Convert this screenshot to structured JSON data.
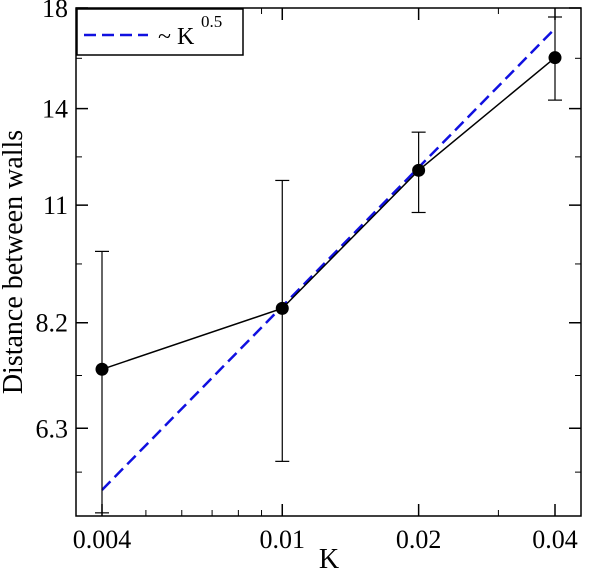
{
  "chart_data": {
    "type": "line",
    "xlabel": "K",
    "ylabel": "Distance between walls",
    "x_scale": "log",
    "y_scale": "log",
    "xlim": [
      0.004,
      0.04
    ],
    "ylim": [
      5.06,
      18
    ],
    "x_ticks": [
      0.004,
      0.01,
      0.02,
      0.04
    ],
    "x_tick_labels": [
      "0.004",
      "0.01",
      "0.02",
      "0.04"
    ],
    "y_ticks": [
      6.3,
      8.2,
      11,
      14,
      18
    ],
    "y_tick_labels": [
      "6.3",
      "8.2",
      "11",
      "14",
      "18"
    ],
    "grid": false,
    "legend_position": "top-left",
    "series": [
      {
        "style": "solid line with filled circle markers and error bars",
        "color": "#000000",
        "x": [
          0.004,
          0.01,
          0.02,
          0.04
        ],
        "y": [
          7.3,
          8.5,
          12.0,
          15.9
        ],
        "error_low": [
          5.1,
          5.8,
          10.8,
          14.3
        ],
        "error_high": [
          9.8,
          11.7,
          13.2,
          17.6
        ]
      },
      {
        "name": "~ K^0.5",
        "legend_text": "~ K",
        "legend_sup": "0.5",
        "style": "dashed line",
        "color": "#1010e0",
        "x": [
          0.004,
          0.04
        ],
        "y": [
          5.4,
          17.1
        ]
      }
    ]
  }
}
